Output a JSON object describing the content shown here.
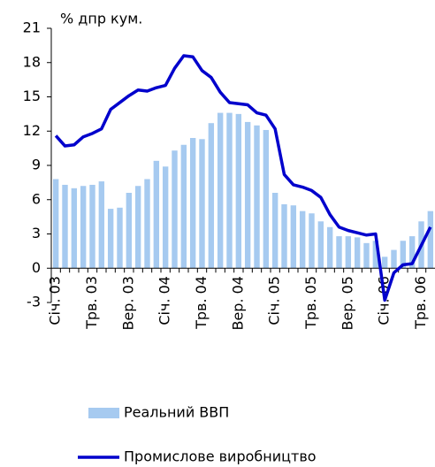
{
  "chart_data": {
    "type": "bar_line",
    "y_label": "% дпр кум.",
    "categories": [
      "Січ. 03",
      null,
      null,
      null,
      "Трв. 03",
      null,
      null,
      null,
      "Вер. 03",
      null,
      null,
      null,
      "Січ. 04",
      null,
      null,
      null,
      "Трв. 04",
      null,
      null,
      null,
      "Вер. 04",
      null,
      null,
      null,
      "Січ. 05",
      null,
      null,
      null,
      "Трв. 05",
      null,
      null,
      null,
      "Вер. 05",
      null,
      null,
      null,
      "Січ. 06",
      null,
      null,
      null,
      "Трв. 06",
      null
    ],
    "series": [
      {
        "name": "Реальний ВВП",
        "type": "bar",
        "color": "#a6caf0",
        "values": [
          7.8,
          7.3,
          7.0,
          7.2,
          7.3,
          7.6,
          5.2,
          5.3,
          6.6,
          7.2,
          7.8,
          9.4,
          8.9,
          10.3,
          10.8,
          11.4,
          11.3,
          12.7,
          13.6,
          13.6,
          13.5,
          12.8,
          12.5,
          12.1,
          6.6,
          5.6,
          5.5,
          5.0,
          4.8,
          4.1,
          3.6,
          2.8,
          2.8,
          2.7,
          2.2,
          2.4,
          1.0,
          1.6,
          2.4,
          2.8,
          4.1,
          5.0
        ]
      },
      {
        "name": "Промислове виробництво",
        "type": "line",
        "color": "#0000cc",
        "values": [
          11.6,
          10.7,
          10.8,
          11.5,
          11.8,
          12.2,
          13.9,
          14.5,
          15.1,
          15.6,
          15.5,
          15.8,
          16.0,
          17.5,
          18.6,
          18.5,
          17.3,
          16.7,
          15.4,
          14.5,
          14.4,
          14.3,
          13.6,
          13.4,
          12.2,
          8.2,
          7.3,
          7.1,
          6.8,
          6.2,
          4.7,
          3.6,
          3.3,
          3.1,
          2.9,
          3.0,
          -2.8,
          -0.4,
          0.3,
          0.4,
          2.0,
          3.6
        ]
      }
    ],
    "ylim": [
      -3,
      21
    ],
    "yticks": [
      -3,
      0,
      3,
      6,
      9,
      12,
      15,
      18,
      21
    ],
    "grid": false
  }
}
